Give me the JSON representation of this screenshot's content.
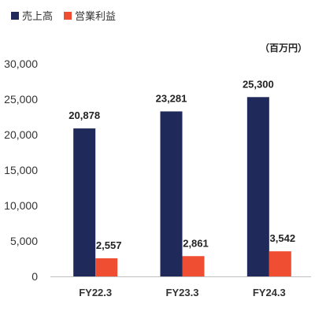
{
  "chart_data": {
    "type": "bar",
    "categories": [
      "FY22.3",
      "FY23.3",
      "FY24.3"
    ],
    "series": [
      {
        "name": "売上高",
        "values": [
          20878,
          23281,
          25300
        ],
        "color": "#1f2a5a"
      },
      {
        "name": "営業利益",
        "values": [
          2557,
          2861,
          3542
        ],
        "color": "#f04e32"
      }
    ],
    "data_labels": [
      [
        "20,878",
        "23,281",
        "25,300"
      ],
      [
        "2,557",
        "2,861",
        "3,542"
      ]
    ],
    "y_ticks": [
      0,
      5000,
      10000,
      15000,
      20000,
      25000,
      30000
    ],
    "y_tick_labels": [
      "0",
      "5,000",
      "10,000",
      "15,000",
      "20,000",
      "25,000",
      "30,000"
    ],
    "ylim": [
      0,
      30000
    ],
    "unit": "（百万円）",
    "legend_position": "top-left",
    "grid": false
  }
}
